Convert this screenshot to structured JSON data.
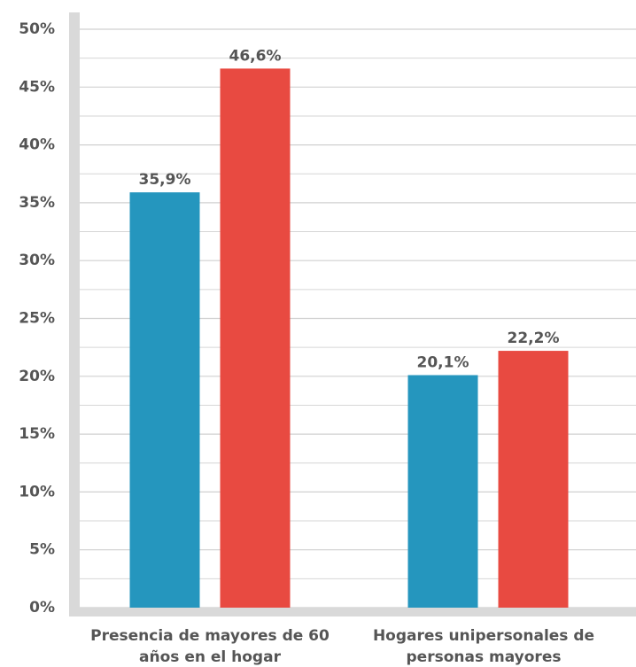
{
  "chart_data": {
    "type": "bar",
    "categories": [
      "Presencia de mayores de 60 años en el hogar",
      "Hogares unipersonales de personas mayores"
    ],
    "series": [
      {
        "color": "#2596be",
        "values": [
          35.9,
          20.1
        ],
        "value_labels": [
          "35,9%",
          "20,1%"
        ]
      },
      {
        "color": "#e84a41",
        "values": [
          46.6,
          22.2
        ],
        "value_labels": [
          "46,6%",
          "22,2%"
        ]
      }
    ],
    "ylim": [
      0,
      50
    ],
    "yticks": [
      {
        "value": 0,
        "label": "0%"
      },
      {
        "value": 5,
        "label": "5%"
      },
      {
        "value": 10,
        "label": "10%"
      },
      {
        "value": 15,
        "label": "15%"
      },
      {
        "value": 20,
        "label": "20%"
      },
      {
        "value": 25,
        "label": "25%"
      },
      {
        "value": 30,
        "label": "30%"
      },
      {
        "value": 35,
        "label": "35%"
      },
      {
        "value": 40,
        "label": "40%"
      },
      {
        "value": 45,
        "label": "45%"
      },
      {
        "value": 50,
        "label": "50%"
      }
    ],
    "yminorticks": [
      2.5,
      7.5,
      12.5,
      17.5,
      22.5,
      27.5,
      32.5,
      37.5,
      42.5,
      47.5
    ],
    "grid": true
  }
}
